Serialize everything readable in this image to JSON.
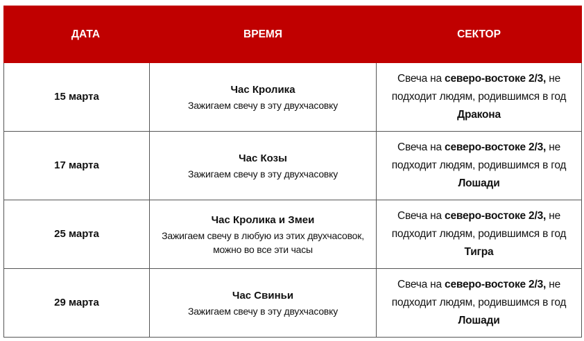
{
  "header": {
    "date": "ДАТА",
    "time": "ВРЕМЯ",
    "sector": "СЕКТОР"
  },
  "colors": {
    "header_bg": "#c00000",
    "header_text": "#ffffff"
  },
  "rows": [
    {
      "date": "15 марта",
      "hour": "Час Кролика",
      "note": "Зажигаем свечу в эту двухчасовку",
      "s1": "Свеча на ",
      "s2": "северо-востоке 2/3,",
      "s3": " не подходит людям, родившимся в год ",
      "s4": "Дракона"
    },
    {
      "date": "17 марта",
      "hour": "Час Козы",
      "note": "Зажигаем свечу в эту двухчасовку",
      "s1": "Свеча на ",
      "s2": "северо-востоке 2/3,",
      "s3": " не подходит людям, родившимся в год ",
      "s4": "Лошади"
    },
    {
      "date": "25 марта",
      "hour": "Час Кролика и Змеи",
      "note": "Зажигаем свечу в любую из этих двухчасовок, можно во все эти часы",
      "s1": "Свеча на ",
      "s2": "северо-востоке 2/3,",
      "s3": " не подходит людям, родившимся в год ",
      "s4": "Тигра"
    },
    {
      "date": "29 марта",
      "hour": "Час Свиньи",
      "note": "Зажигаем свечу в эту двухчасовку",
      "s1": "Свеча на ",
      "s2": "северо-востоке 2/3,",
      "s3": " не подходит людям, родившимся в год ",
      "s4": "Лошади"
    }
  ]
}
